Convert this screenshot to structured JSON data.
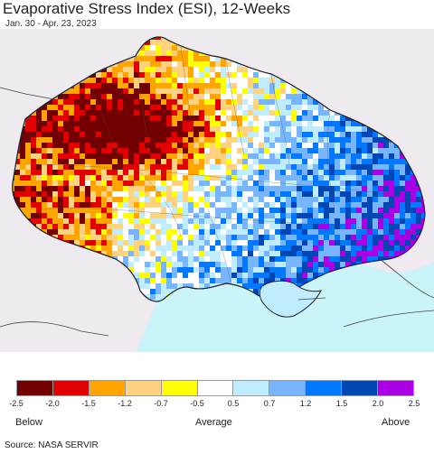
{
  "header": {
    "title": "Evaporative Stress Index (ESI), 12-Weeks",
    "date_range": "Jan. 30 - Apr. 23, 2023"
  },
  "map": {
    "region": "Ukraine",
    "colors": {
      "background": "#eeeaef",
      "sea": "#c9f4f8",
      "border": "#222222"
    }
  },
  "legend": {
    "ticks": [
      "-2.5",
      "-2.0",
      "-1.5",
      "-1.2",
      "-0.7",
      "-0.5",
      "0.5",
      "0.7",
      "1.2",
      "1.5",
      "2.0",
      "2.5"
    ],
    "colors": [
      "#720000",
      "#e30000",
      "#ffa500",
      "#ffd27f",
      "#ffff00",
      "#ffffff",
      "#bfecff",
      "#78b5ff",
      "#0078ff",
      "#0046b4",
      "#aa00e6"
    ],
    "below_label": "Below",
    "average_label": "Average",
    "above_label": "Above"
  },
  "footer": {
    "source": "Source: NASA SERVIR"
  }
}
